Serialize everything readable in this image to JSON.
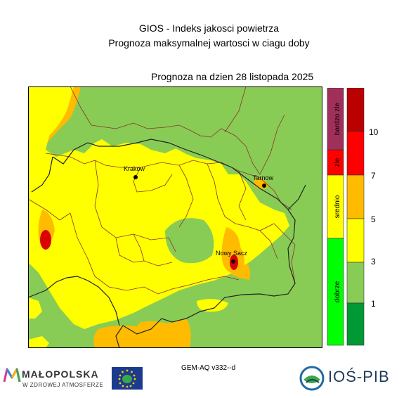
{
  "header": {
    "title": "GIOS - Indeks jakosci powietrza",
    "subtitle": "Prognoza maksymalnej wartosci w ciagu doby",
    "date_label": "Prognoza na dzien  28 listopada 2025"
  },
  "cities": [
    {
      "name": "Krakow"
    },
    {
      "name": "Tarnow"
    },
    {
      "name": "Nowy Sacz"
    }
  ],
  "legend": {
    "categories": [
      {
        "label": "dobrze",
        "color": "#00ff00"
      },
      {
        "label": "srednio",
        "color": "#ffff00"
      },
      {
        "label": "zle",
        "color": "#ff0000"
      },
      {
        "label": "bardzo zle",
        "color": "#a0305a"
      }
    ],
    "scale_colors": [
      "#009933",
      "#88cc55",
      "#ffff00",
      "#ffbb00",
      "#ff0000",
      "#bb0000"
    ],
    "tick_labels": [
      "1",
      "3",
      "5",
      "7",
      "10"
    ]
  },
  "colors": {
    "low": "#88cc55",
    "moderate": "#ffff00",
    "elevated": "#ffbb00",
    "high": "#dd0000",
    "borders": "#8b3030"
  },
  "footer": {
    "model": "GEM-AQ v332--d",
    "malopolska_name": "MAŁOPOLSKA",
    "malopolska_tagline": "W ZDROWEJ ATMOSFERZE",
    "ios_name": "IOŚ-PIB"
  }
}
